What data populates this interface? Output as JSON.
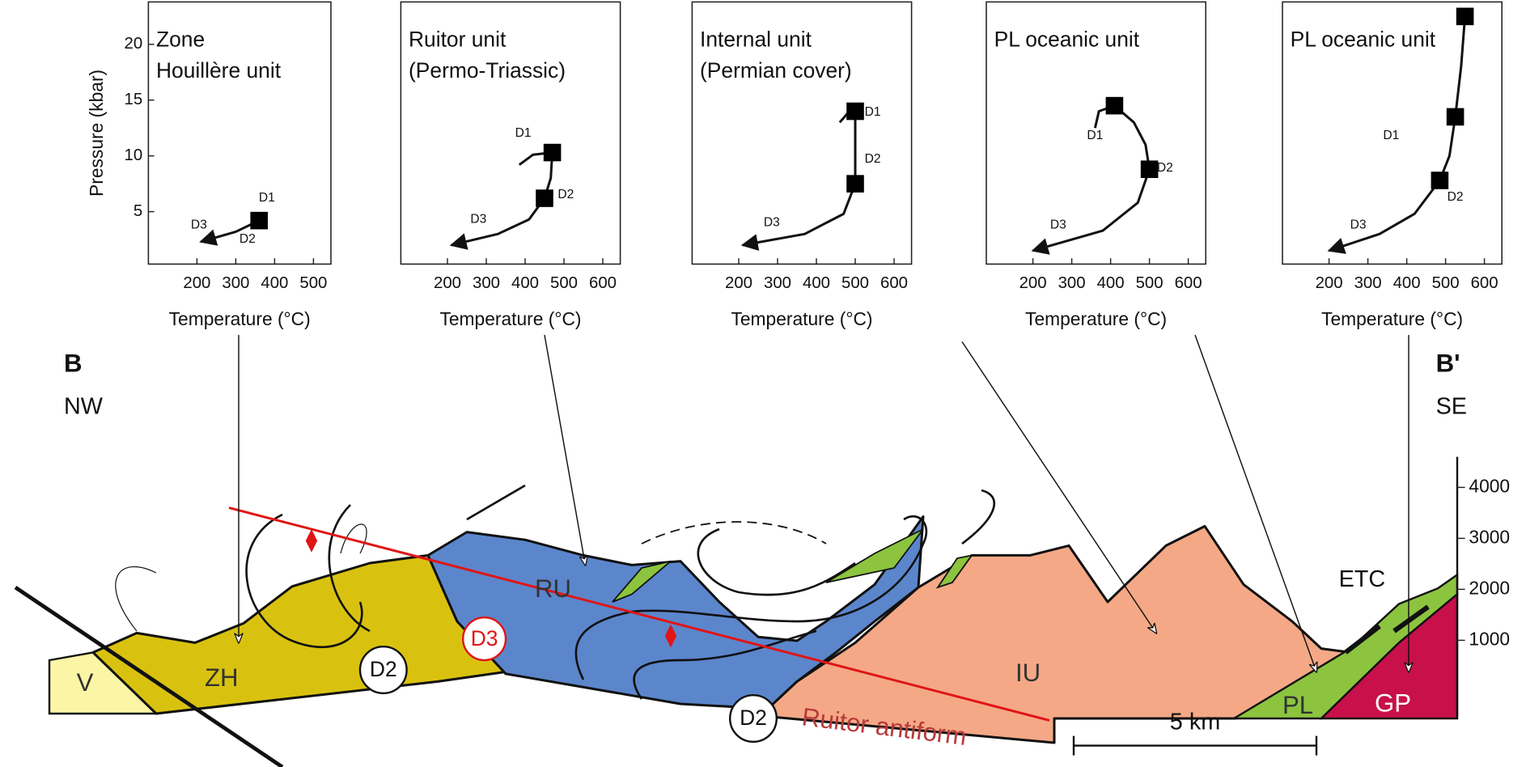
{
  "chart_data": [
    {
      "type": "line",
      "title": [
        "Zone",
        "Houillère unit"
      ],
      "xlabel": "Temperature (°C)",
      "ylabel": "Pressure (kbar)",
      "xlim": [
        75,
        545
      ],
      "xticks": [
        200,
        300,
        400,
        500
      ],
      "ylim": [
        0.3,
        23.8
      ],
      "yticks": [
        5,
        10,
        15,
        20
      ],
      "path": {
        "x": [
          360,
          300,
          210
        ],
        "y": [
          4.2,
          3.2,
          2.3
        ]
      },
      "markers": {
        "x": [
          360
        ],
        "y": [
          4.2
        ]
      },
      "annotations": [
        {
          "text": "D1",
          "x": 380,
          "y": 6.2
        },
        {
          "text": "D2",
          "x": 330,
          "y": 2.5
        },
        {
          "text": "D3",
          "x": 205,
          "y": 3.8
        }
      ]
    },
    {
      "type": "line",
      "title": [
        "Ruitor unit",
        "(Permo-Triassic)"
      ],
      "xlabel": "Temperature (°C)",
      "xlim": [
        80,
        645
      ],
      "xticks": [
        200,
        300,
        400,
        500,
        600
      ],
      "ylim": [
        0.3,
        23.8
      ],
      "path": {
        "x": [
          385,
          420,
          470,
          466,
          450,
          410,
          330,
          210
        ],
        "y": [
          9.2,
          10.1,
          10.3,
          8,
          6.2,
          4.3,
          3,
          2
        ]
      },
      "markers": {
        "x": [
          470,
          450
        ],
        "y": [
          10.3,
          6.2
        ]
      },
      "annotations": [
        {
          "text": "D1",
          "x": 395,
          "y": 12
        },
        {
          "text": "D2",
          "x": 505,
          "y": 6.5
        },
        {
          "text": "D3",
          "x": 280,
          "y": 4.3
        }
      ]
    },
    {
      "type": "line",
      "title": [
        "Internal unit",
        "(Permian cover)"
      ],
      "xlabel": "Temperature (°C)",
      "xlim": [
        80,
        645
      ],
      "xticks": [
        200,
        300,
        400,
        500,
        600
      ],
      "ylim": [
        0.3,
        23.8
      ],
      "path": {
        "x": [
          460,
          480,
          500,
          500,
          500,
          470,
          370,
          210
        ],
        "y": [
          13,
          13.8,
          14,
          10.5,
          7.5,
          4.8,
          3,
          2
        ]
      },
      "markers": {
        "x": [
          500,
          500
        ],
        "y": [
          14,
          7.5
        ]
      },
      "annotations": [
        {
          "text": "D1",
          "x": 545,
          "y": 13.9
        },
        {
          "text": "D2",
          "x": 545,
          "y": 9.7
        },
        {
          "text": "D3",
          "x": 285,
          "y": 4
        }
      ]
    },
    {
      "type": "line",
      "title": [
        "PL oceanic unit"
      ],
      "xlabel": "Temperature (°C)",
      "xlim": [
        80,
        645
      ],
      "xticks": [
        200,
        300,
        400,
        500,
        600
      ],
      "ylim": [
        0.3,
        23.8
      ],
      "path": {
        "x": [
          360,
          370,
          410,
          460,
          490,
          500,
          470,
          380,
          200
        ],
        "y": [
          12.5,
          14,
          14.5,
          13,
          11,
          8.8,
          5.8,
          3.3,
          1.5
        ]
      },
      "markers": {
        "x": [
          410,
          500
        ],
        "y": [
          14.5,
          8.8
        ]
      },
      "annotations": [
        {
          "text": "D1",
          "x": 360,
          "y": 11.8
        },
        {
          "text": "D2",
          "x": 540,
          "y": 8.9
        },
        {
          "text": "D3",
          "x": 265,
          "y": 3.8
        }
      ]
    },
    {
      "type": "line",
      "title": [
        "PL oceanic unit"
      ],
      "xlabel": "Temperature (°C)",
      "xlim": [
        80,
        645
      ],
      "xticks": [
        200,
        300,
        400,
        500,
        600
      ],
      "ylim": [
        0.3,
        23.8
      ],
      "path": {
        "x": [
          550,
          540,
          525,
          510,
          485,
          420,
          330,
          200
        ],
        "y": [
          22.5,
          18,
          13.5,
          10,
          7.8,
          4.8,
          3,
          1.5
        ]
      },
      "markers": {
        "x": [
          550,
          525,
          485
        ],
        "y": [
          22.5,
          13.5,
          7.8
        ]
      },
      "annotations": [
        {
          "text": "D1",
          "x": 360,
          "y": 11.8
        },
        {
          "text": "D2",
          "x": 525,
          "y": 6.3
        },
        {
          "text": "D3",
          "x": 275,
          "y": 3.8
        }
      ]
    }
  ],
  "cross_section": {
    "label_left": "B",
    "dir_left": "NW",
    "label_right": "B'",
    "dir_right": "SE",
    "units": [
      "V",
      "ZH",
      "RU",
      "IU",
      "PL",
      "GP"
    ],
    "etc": "ETC",
    "stages": [
      "D3",
      "D2",
      "D2"
    ],
    "antiform": "Ruitor antiform",
    "scale": "5 km",
    "elevation_lim": [
      0,
      4600
    ],
    "elevation_ticks": [
      1000,
      2000,
      3000,
      4000
    ]
  }
}
